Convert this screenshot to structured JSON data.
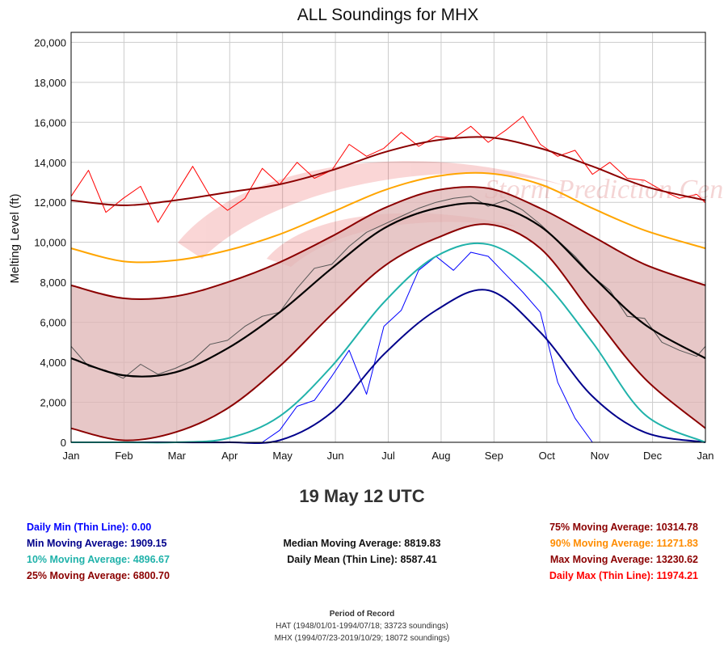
{
  "chart_data": {
    "type": "line",
    "title": "ALL Soundings for MHX",
    "xlabel": "",
    "ylabel": "Melting Level (ft)",
    "ylim": [
      0,
      20500
    ],
    "yticks": [
      0,
      2000,
      4000,
      6000,
      8000,
      10000,
      12000,
      14000,
      16000,
      18000,
      20000
    ],
    "ytick_labels": [
      "0",
      "2,000",
      "4,000",
      "6,000",
      "8,000",
      "10,000",
      "12,000",
      "14,000",
      "16,000",
      "18,000",
      "20,000"
    ],
    "xticks": [
      "Jan",
      "Feb",
      "Mar",
      "Apr",
      "May",
      "Jun",
      "Jul",
      "Aug",
      "Sep",
      "Oct",
      "Nov",
      "Dec",
      "Jan"
    ],
    "xlim_days": [
      0,
      365
    ],
    "grid": true,
    "watermark": "Storm Prediction Center",
    "series": [
      {
        "name": "Max Moving Average",
        "color": "#8b0000",
        "day": [
          0,
          30,
          60,
          90,
          120,
          150,
          180,
          210,
          240,
          270,
          300,
          330,
          365
        ],
        "values": [
          12100,
          11850,
          12100,
          12500,
          12900,
          13600,
          14500,
          15100,
          15250,
          14700,
          13800,
          12800,
          12100
        ]
      },
      {
        "name": "90% Moving Average",
        "color": "#ffa500",
        "day": [
          0,
          30,
          60,
          90,
          120,
          150,
          180,
          210,
          240,
          270,
          300,
          330,
          365
        ],
        "values": [
          9700,
          9050,
          9100,
          9600,
          10400,
          11500,
          12600,
          13300,
          13450,
          12900,
          11700,
          10600,
          9700
        ]
      },
      {
        "name": "75% Moving Average",
        "color": "#8b0000",
        "day": [
          0,
          30,
          60,
          90,
          120,
          150,
          180,
          210,
          240,
          270,
          300,
          330,
          365
        ],
        "values": [
          7850,
          7200,
          7300,
          8000,
          9000,
          10300,
          11700,
          12600,
          12700,
          11700,
          10300,
          8900,
          7850
        ]
      },
      {
        "name": "Median Moving Average",
        "color": "#000000",
        "day": [
          0,
          30,
          60,
          90,
          120,
          150,
          180,
          210,
          240,
          270,
          300,
          330,
          365
        ],
        "values": [
          4200,
          3350,
          3500,
          4700,
          6500,
          8700,
          10700,
          11700,
          11900,
          10800,
          8300,
          5900,
          4200
        ]
      },
      {
        "name": "25% Moving Average",
        "color": "#8b0000",
        "day": [
          0,
          30,
          60,
          90,
          120,
          150,
          180,
          210,
          240,
          270,
          300,
          330,
          365
        ],
        "values": [
          700,
          100,
          500,
          1700,
          3800,
          6400,
          8800,
          10200,
          10900,
          9700,
          6400,
          3200,
          700
        ]
      },
      {
        "name": "10% Moving Average",
        "color": "#20b2aa",
        "day": [
          0,
          30,
          60,
          90,
          120,
          150,
          180,
          210,
          240,
          270,
          300,
          330,
          365
        ],
        "values": [
          0,
          0,
          0,
          200,
          1300,
          3800,
          7000,
          9300,
          9900,
          8200,
          5000,
          1400,
          0
        ]
      },
      {
        "name": "Min Moving Average",
        "color": "#00008b",
        "day": [
          0,
          30,
          60,
          90,
          120,
          150,
          180,
          210,
          240,
          270,
          300,
          330,
          365
        ],
        "values": [
          0,
          0,
          0,
          0,
          100,
          1500,
          4400,
          6600,
          7600,
          5500,
          2300,
          500,
          0
        ]
      },
      {
        "name": "Daily Max (Thin Line)",
        "color": "#ff0000",
        "day": [
          0,
          10,
          20,
          30,
          40,
          50,
          60,
          70,
          80,
          90,
          100,
          110,
          120,
          130,
          140,
          150,
          160,
          170,
          180,
          190,
          200,
          210,
          220,
          230,
          240,
          250,
          260,
          270,
          280,
          290,
          300,
          310,
          320,
          330,
          340,
          350,
          360,
          365
        ],
        "values": [
          12300,
          13600,
          11500,
          12200,
          12800,
          11000,
          12400,
          13800,
          12300,
          11600,
          12200,
          13700,
          12900,
          14000,
          13200,
          13600,
          14900,
          14300,
          14700,
          15500,
          14800,
          15300,
          15200,
          15800,
          15000,
          15600,
          16300,
          14900,
          14300,
          14600,
          13400,
          14000,
          13200,
          13100,
          12600,
          12200,
          12400,
          11974
        ]
      },
      {
        "name": "Daily Mean (Thin Line)",
        "color": "#555555",
        "day": [
          0,
          10,
          20,
          30,
          40,
          50,
          60,
          70,
          80,
          90,
          100,
          110,
          120,
          130,
          140,
          150,
          160,
          170,
          180,
          190,
          200,
          210,
          220,
          230,
          240,
          250,
          260,
          270,
          280,
          290,
          300,
          310,
          320,
          330,
          340,
          350,
          360,
          365
        ],
        "values": [
          4800,
          3800,
          3600,
          3200,
          3900,
          3400,
          3700,
          4100,
          4900,
          5100,
          5800,
          6300,
          6500,
          7700,
          8700,
          8900,
          9800,
          10500,
          10900,
          11300,
          11700,
          12000,
          12200,
          12300,
          11800,
          12100,
          11600,
          10900,
          10100,
          9300,
          8300,
          7600,
          6300,
          6200,
          5000,
          4600,
          4300,
          4800
        ]
      },
      {
        "name": "Daily Min (Thin Line)",
        "color": "#0000ff",
        "day": [
          0,
          10,
          20,
          30,
          40,
          50,
          60,
          70,
          80,
          90,
          100,
          110,
          120,
          130,
          140,
          150,
          160,
          170,
          180,
          190,
          200,
          210,
          220,
          230,
          240,
          250,
          260,
          270,
          280,
          290,
          300,
          310,
          320,
          330,
          340,
          350,
          360,
          365
        ],
        "values": [
          0,
          0,
          0,
          0,
          0,
          0,
          0,
          0,
          0,
          0,
          0,
          0,
          600,
          1800,
          2100,
          3300,
          4600,
          2400,
          5800,
          6600,
          8600,
          9300,
          8600,
          9500,
          9300,
          8400,
          7500,
          6500,
          3000,
          1200,
          0,
          0,
          0,
          0,
          0,
          0,
          0,
          0
        ]
      }
    ]
  },
  "date_label": "19 May 12 UTC",
  "stats": {
    "daily_min": "Daily Min (Thin Line): 0.00",
    "min_ma": "Min Moving Average: 1909.15",
    "p10_ma": "10% Moving Average: 4896.67",
    "p25_ma": "25% Moving Average: 6800.70",
    "median_ma": "Median Moving Average: 8819.83",
    "daily_mean": "Daily Mean (Thin Line): 8587.41",
    "p75_ma": "75% Moving Average: 10314.78",
    "p90_ma": "90% Moving Average: 11271.83",
    "max_ma": "Max Moving Average: 13230.62",
    "daily_max": "Daily Max (Thin Line): 11974.21"
  },
  "colors": {
    "daily_min": "#0000ff",
    "min_ma": "#00008b",
    "p10_ma": "#20b2aa",
    "p25_ma": "#8b0000",
    "median_ma": "#000000",
    "p75_ma": "#8b0000",
    "p90_ma": "#ffa500",
    "max_ma": "#8b0000",
    "daily_max": "#ff0000",
    "band_fill": "#dfb4b4"
  },
  "period_of_record": {
    "title": "Period of Record",
    "line1": "HAT (1948/01/01-1994/07/18; 33723 soundings)",
    "line2": "MHX (1994/07/23-2019/10/29; 18072 soundings)"
  }
}
